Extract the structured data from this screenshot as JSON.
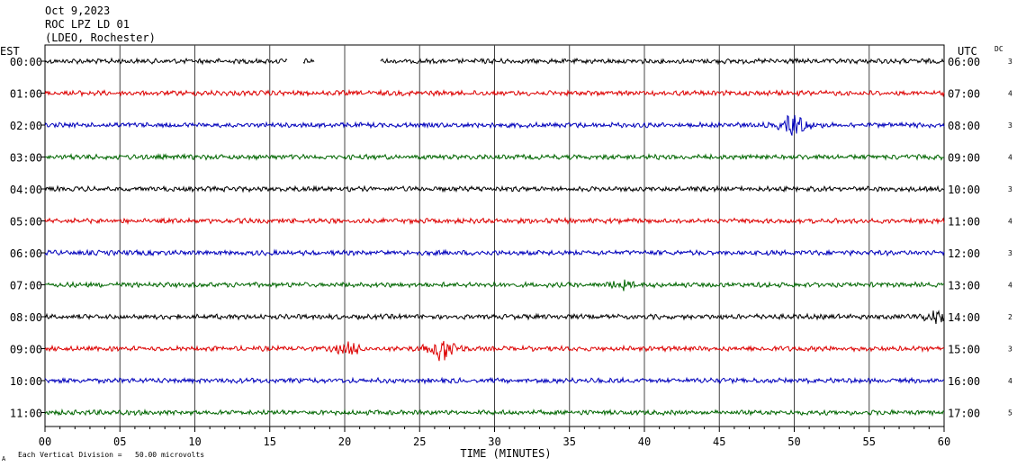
{
  "header": {
    "date": "Oct 9,2023",
    "station": "ROC LPZ LD 01",
    "network": "(LDEO, Rochester)"
  },
  "left_axis_label": "EST",
  "right_axis_label": "UTC",
  "dc_label": "DC",
  "footer": {
    "scale_note": "Each Vertical Division =   50.00 microvolts",
    "corner_mark": "A"
  },
  "chart_data": {
    "type": "line",
    "title": "",
    "xlabel": "TIME (MINUTES)",
    "ylabel": "",
    "xlim": [
      0,
      60
    ],
    "x_ticks": [
      "00",
      "05",
      "10",
      "15",
      "20",
      "25",
      "30",
      "35",
      "40",
      "45",
      "50",
      "55",
      "60"
    ],
    "grid": true,
    "colors": [
      "#000000",
      "#dd0000",
      "#0000bb",
      "#006600"
    ],
    "rows": [
      {
        "est": "00:00",
        "utc": "06:00",
        "dc": "3",
        "color": "#000000",
        "gaps": [
          [
            16.2,
            17.2
          ],
          [
            18.0,
            22.4
          ]
        ]
      },
      {
        "est": "01:00",
        "utc": "07:00",
        "dc": "4",
        "color": "#dd0000"
      },
      {
        "est": "02:00",
        "utc": "08:00",
        "dc": "3",
        "color": "#0000bb",
        "bursts": [
          [
            50.0,
            3.5
          ]
        ]
      },
      {
        "est": "03:00",
        "utc": "09:00",
        "dc": "4",
        "color": "#006600"
      },
      {
        "est": "04:00",
        "utc": "10:00",
        "dc": "3",
        "color": "#000000"
      },
      {
        "est": "05:00",
        "utc": "11:00",
        "dc": "4",
        "color": "#dd0000"
      },
      {
        "est": "06:00",
        "utc": "12:00",
        "dc": "3",
        "color": "#0000bb"
      },
      {
        "est": "07:00",
        "utc": "13:00",
        "dc": "4",
        "color": "#006600",
        "bursts": [
          [
            38.5,
            1.6
          ]
        ]
      },
      {
        "est": "08:00",
        "utc": "14:00",
        "dc": "2",
        "color": "#000000",
        "bursts": [
          [
            59.5,
            1.8
          ]
        ]
      },
      {
        "est": "09:00",
        "utc": "15:00",
        "dc": "3",
        "color": "#dd0000",
        "bursts": [
          [
            20.3,
            2.0
          ],
          [
            26.5,
            4.2
          ]
        ]
      },
      {
        "est": "10:00",
        "utc": "16:00",
        "dc": "4",
        "color": "#0000bb"
      },
      {
        "est": "11:00",
        "utc": "17:00",
        "dc": "5",
        "color": "#006600"
      }
    ]
  }
}
